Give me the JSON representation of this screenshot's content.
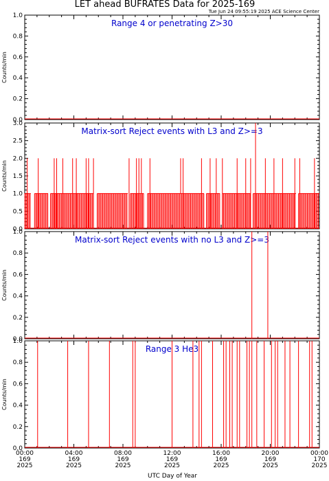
{
  "title": "LET ahead BUFRATES Data for 2025-169",
  "timestamp": "Tue Jun 24 09:55:19 2025 ACE Science Center",
  "xlabel": "UTC Day of Year",
  "colors": {
    "series": "#ff0000",
    "panel_title": "#0000cc",
    "axes": "#000000"
  },
  "x_ticks": [
    {
      "hour": 0,
      "time": "00:00",
      "doy": "169",
      "year": "2025"
    },
    {
      "hour": 4,
      "time": "04:00",
      "doy": "169",
      "year": "2025"
    },
    {
      "hour": 8,
      "time": "08:00",
      "doy": "169",
      "year": "2025"
    },
    {
      "hour": 12,
      "time": "12:00",
      "doy": "169",
      "year": "2025"
    },
    {
      "hour": 16,
      "time": "16:00",
      "doy": "169",
      "year": "2025"
    },
    {
      "hour": 20,
      "time": "20:00",
      "doy": "169",
      "year": "2025"
    },
    {
      "hour": 24,
      "time": "00:00",
      "doy": "170",
      "year": "2025"
    }
  ],
  "chart_data": [
    {
      "type": "line",
      "title": "Range 4 or  penetrating Z>30",
      "ylabel": "Counts/min",
      "xlim": [
        0,
        24
      ],
      "ylim": [
        0,
        1.0
      ],
      "yticks": [
        "0.0",
        "0.2",
        "0.4",
        "0.6",
        "0.8",
        "1.0"
      ],
      "ytick_values": [
        0,
        0.2,
        0.4,
        0.6,
        0.8,
        1.0
      ],
      "spikes": []
    },
    {
      "type": "line",
      "title": "Matrix-sort Reject events with L3 and Z>=3",
      "ylabel": "Counts/min",
      "xlim": [
        0,
        24
      ],
      "ylim": [
        0,
        3.0
      ],
      "yticks": [
        "0.0",
        "0.5",
        "1.0",
        "1.5",
        "2.0",
        "2.5",
        "3.0"
      ],
      "ytick_values": [
        0,
        0.5,
        1.0,
        1.5,
        2.0,
        2.5,
        3.0
      ],
      "baseline_level": 1,
      "dense_level1_blocks": [
        [
          0.0,
          0.5
        ],
        [
          0.8,
          1.9
        ],
        [
          2.1,
          5.6
        ],
        [
          5.9,
          8.4
        ],
        [
          8.6,
          9.7
        ],
        [
          10.0,
          14.6
        ],
        [
          14.8,
          15.9
        ],
        [
          16.1,
          18.4
        ],
        [
          18.6,
          22.1
        ],
        [
          22.3,
          24.0
        ]
      ],
      "spikes": [
        {
          "x": 0.2,
          "y": 2
        },
        {
          "x": 1.1,
          "y": 2
        },
        {
          "x": 2.4,
          "y": 2
        },
        {
          "x": 2.6,
          "y": 2
        },
        {
          "x": 3.1,
          "y": 2
        },
        {
          "x": 3.9,
          "y": 2
        },
        {
          "x": 4.2,
          "y": 2
        },
        {
          "x": 5.0,
          "y": 2
        },
        {
          "x": 5.2,
          "y": 2
        },
        {
          "x": 5.6,
          "y": 2
        },
        {
          "x": 8.5,
          "y": 2
        },
        {
          "x": 9.1,
          "y": 2
        },
        {
          "x": 9.3,
          "y": 2
        },
        {
          "x": 9.5,
          "y": 2
        },
        {
          "x": 10.2,
          "y": 2
        },
        {
          "x": 12.7,
          "y": 2
        },
        {
          "x": 12.9,
          "y": 2
        },
        {
          "x": 14.4,
          "y": 2
        },
        {
          "x": 15.1,
          "y": 2
        },
        {
          "x": 15.6,
          "y": 2
        },
        {
          "x": 16.1,
          "y": 2
        },
        {
          "x": 17.3,
          "y": 2
        },
        {
          "x": 18.0,
          "y": 2
        },
        {
          "x": 18.4,
          "y": 2
        },
        {
          "x": 18.8,
          "y": 3
        },
        {
          "x": 19.6,
          "y": 2
        },
        {
          "x": 20.3,
          "y": 2
        },
        {
          "x": 21.0,
          "y": 2
        },
        {
          "x": 22.0,
          "y": 2
        },
        {
          "x": 22.4,
          "y": 2
        },
        {
          "x": 23.6,
          "y": 2
        }
      ]
    },
    {
      "type": "line",
      "title": "Matrix-sort Reject events with no L3 and Z>=3",
      "ylabel": "Counts/min",
      "xlim": [
        0,
        24
      ],
      "ylim": [
        0,
        1.0
      ],
      "yticks": [
        "0.0",
        "0.2",
        "0.4",
        "0.6",
        "0.8",
        "1.0"
      ],
      "ytick_values": [
        0,
        0.2,
        0.4,
        0.6,
        0.8,
        1.0
      ],
      "spikes": [
        {
          "x": 18.5,
          "y": 1
        },
        {
          "x": 19.8,
          "y": 1
        }
      ]
    },
    {
      "type": "line",
      "title": "Range 3 He3",
      "ylabel": "Counts/min",
      "xlim": [
        0,
        24
      ],
      "ylim": [
        0,
        1.0
      ],
      "yticks": [
        "0.0",
        "0.2",
        "0.4",
        "0.6",
        "0.8",
        "1.0"
      ],
      "ytick_values": [
        0,
        0.2,
        0.4,
        0.6,
        0.8,
        1.0
      ],
      "spikes": [
        {
          "x": 1.05,
          "y": 1
        },
        {
          "x": 3.5,
          "y": 1
        },
        {
          "x": 5.2,
          "y": 1
        },
        {
          "x": 6.9,
          "y": 1
        },
        {
          "x": 8.8,
          "y": 1
        },
        {
          "x": 9.0,
          "y": 1
        },
        {
          "x": 12.0,
          "y": 1
        },
        {
          "x": 13.7,
          "y": 1
        },
        {
          "x": 14.2,
          "y": 1
        },
        {
          "x": 14.4,
          "y": 1
        },
        {
          "x": 15.3,
          "y": 1
        },
        {
          "x": 16.2,
          "y": 1
        },
        {
          "x": 16.4,
          "y": 1
        },
        {
          "x": 16.7,
          "y": 1
        },
        {
          "x": 16.9,
          "y": 1
        },
        {
          "x": 17.3,
          "y": 1
        },
        {
          "x": 17.5,
          "y": 1
        },
        {
          "x": 18.1,
          "y": 1
        },
        {
          "x": 18.3,
          "y": 1
        },
        {
          "x": 18.5,
          "y": 1
        },
        {
          "x": 18.9,
          "y": 1
        },
        {
          "x": 19.5,
          "y": 1
        },
        {
          "x": 20.1,
          "y": 1
        },
        {
          "x": 20.4,
          "y": 1
        },
        {
          "x": 20.6,
          "y": 1
        },
        {
          "x": 21.2,
          "y": 1
        },
        {
          "x": 21.6,
          "y": 1
        },
        {
          "x": 22.3,
          "y": 1
        },
        {
          "x": 23.2,
          "y": 1
        },
        {
          "x": 23.4,
          "y": 1
        }
      ]
    }
  ]
}
